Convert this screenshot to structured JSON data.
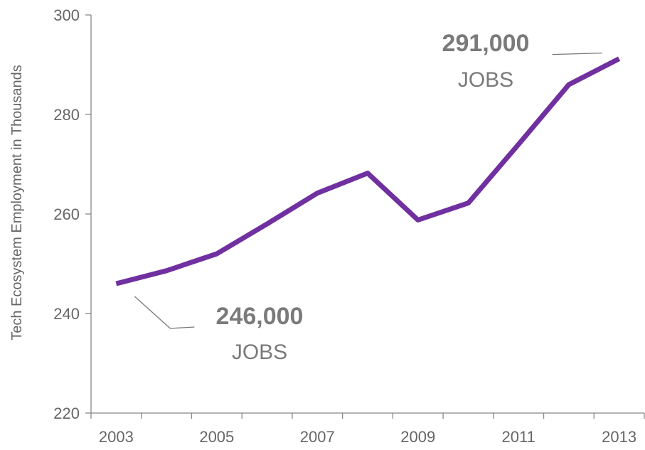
{
  "chart_data": {
    "type": "line",
    "title": "",
    "xlabel": "",
    "ylabel": "Tech Ecosystem Employment in Thousands",
    "x": [
      2003,
      2004,
      2005,
      2006,
      2007,
      2008,
      2009,
      2010,
      2011,
      2012,
      2013
    ],
    "x_tick_labels": [
      "2003",
      "2005",
      "2007",
      "2009",
      "2011",
      "2013"
    ],
    "y_tick_labels": [
      "220",
      "240",
      "260",
      "280",
      "300"
    ],
    "ylim": [
      220,
      300
    ],
    "grid": false,
    "series": [
      {
        "values": [
          246,
          248.6,
          252,
          258,
          264.2,
          268.2,
          258.8,
          262.2,
          274,
          286,
          291.2
        ]
      }
    ],
    "annotations": [
      {
        "value": "246,000",
        "unit": "JOBS",
        "points_to_index": 0
      },
      {
        "value": "291,000",
        "unit": "JOBS",
        "points_to_index": 10
      }
    ]
  },
  "colors": {
    "series_line": "#7030a0",
    "axis": "#888888",
    "text": "#666666"
  }
}
